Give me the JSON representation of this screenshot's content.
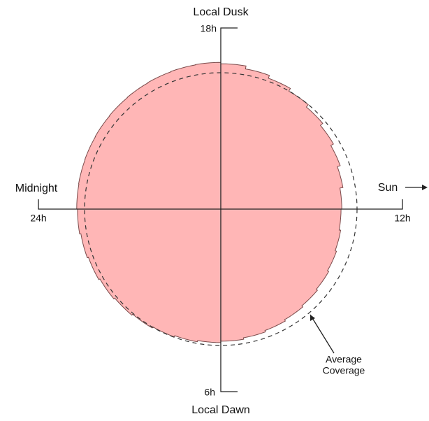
{
  "labels": {
    "top": "Local Dusk",
    "top_tick": "18h",
    "left": "Midnight",
    "left_tick": "24h",
    "right": "Sun",
    "right_tick": "12h",
    "bottom_tick": "6h",
    "bottom": "Local Dawn",
    "annotation": [
      "Average",
      "Coverage"
    ]
  }
}
